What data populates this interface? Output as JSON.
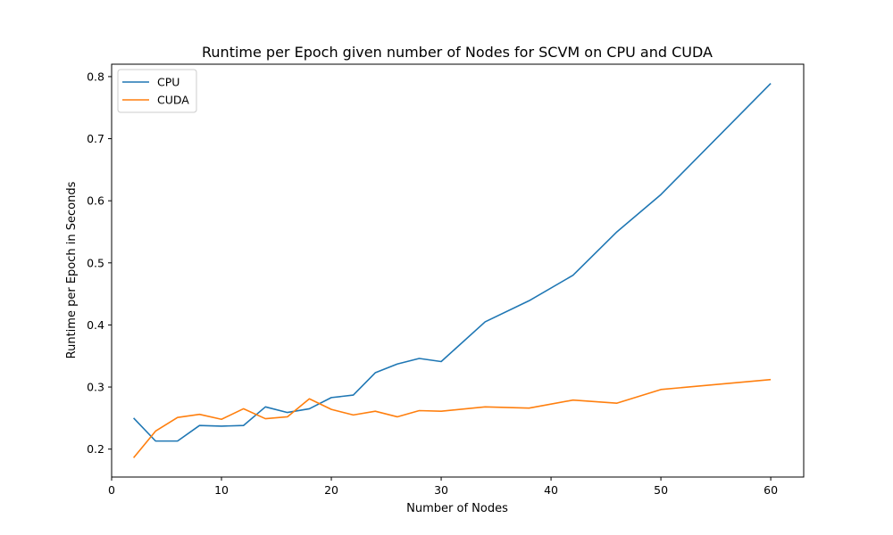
{
  "chart_data": {
    "type": "line",
    "title": "Runtime per Epoch given number of Nodes for SCVM on CPU and CUDA",
    "xlabel": "Number of Nodes",
    "ylabel": "Runtime per Epoch in Seconds",
    "xlim": [
      0,
      63
    ],
    "ylim": [
      0.155,
      0.82
    ],
    "xticks": [
      0,
      10,
      20,
      30,
      40,
      50,
      60
    ],
    "yticks": [
      0.2,
      0.3,
      0.4,
      0.5,
      0.6,
      0.7,
      0.8
    ],
    "grid": false,
    "legend_position": "top-left",
    "series": [
      {
        "name": "CPU",
        "color": "#1f77b4",
        "x": [
          2,
          4,
          6,
          8,
          10,
          12,
          14,
          16,
          18,
          20,
          22,
          24,
          26,
          28,
          30,
          34,
          38,
          42,
          46,
          50,
          60
        ],
        "y": [
          0.25,
          0.213,
          0.213,
          0.238,
          0.237,
          0.238,
          0.268,
          0.259,
          0.265,
          0.283,
          0.287,
          0.323,
          0.337,
          0.346,
          0.341,
          0.405,
          0.439,
          0.48,
          0.55,
          0.61,
          0.789
        ]
      },
      {
        "name": "CUDA",
        "color": "#ff7f0e",
        "x": [
          2,
          4,
          6,
          8,
          10,
          12,
          14,
          16,
          18,
          20,
          22,
          24,
          26,
          28,
          30,
          34,
          38,
          42,
          46,
          50,
          60
        ],
        "y": [
          0.186,
          0.229,
          0.251,
          0.256,
          0.248,
          0.265,
          0.249,
          0.252,
          0.281,
          0.264,
          0.255,
          0.261,
          0.252,
          0.262,
          0.261,
          0.268,
          0.266,
          0.279,
          0.274,
          0.296,
          0.312
        ]
      }
    ]
  }
}
